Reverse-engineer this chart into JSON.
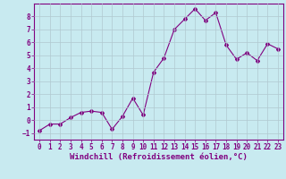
{
  "x": [
    0,
    1,
    2,
    3,
    4,
    5,
    6,
    7,
    8,
    9,
    10,
    11,
    12,
    13,
    14,
    15,
    16,
    17,
    18,
    19,
    20,
    21,
    22,
    23
  ],
  "y": [
    -0.8,
    -0.3,
    -0.3,
    0.2,
    0.6,
    0.7,
    0.6,
    -0.7,
    0.3,
    1.7,
    0.4,
    3.7,
    4.8,
    7.0,
    7.8,
    8.6,
    7.7,
    8.3,
    5.8,
    4.7,
    5.2,
    4.6,
    5.9,
    5.5
  ],
  "line_color": "#800080",
  "marker": "D",
  "marker_size": 2,
  "bg_color": "#c8eaf0",
  "grid_color": "#b0c8d0",
  "xlabel": "Windchill (Refroidissement éolien,°C)",
  "xlim": [
    -0.5,
    23.5
  ],
  "ylim": [
    -1.5,
    9.0
  ],
  "yticks": [
    -1,
    0,
    1,
    2,
    3,
    4,
    5,
    6,
    7,
    8
  ],
  "xticks": [
    0,
    1,
    2,
    3,
    4,
    5,
    6,
    7,
    8,
    9,
    10,
    11,
    12,
    13,
    14,
    15,
    16,
    17,
    18,
    19,
    20,
    21,
    22,
    23
  ],
  "tick_color": "#800080",
  "label_color": "#800080",
  "font_size_xlabel": 6.5,
  "font_size_ticks": 5.5
}
